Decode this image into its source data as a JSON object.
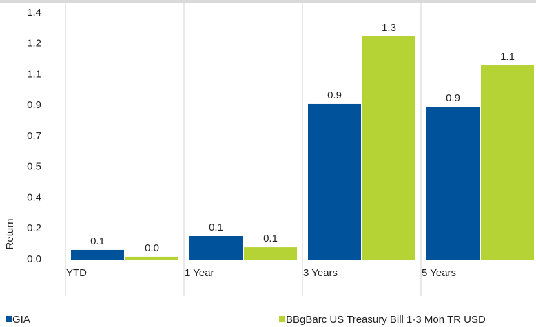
{
  "chart_data": {
    "type": "bar",
    "y_label": "Return",
    "categories": [
      "YTD",
      "1 Year",
      "3 Years",
      "5 Years"
    ],
    "series": [
      {
        "name": "GIA",
        "color": "#00539b",
        "values": [
          0.055,
          0.133,
          0.884,
          0.868
        ],
        "value_labels": [
          "0.1",
          "0.1",
          "0.9",
          "0.9"
        ]
      },
      {
        "name": "BBgBarc US Treasury Bill 1-3 Mon TR USD",
        "color": "#b5d334",
        "values": [
          0.016,
          0.07,
          1.267,
          1.103
        ],
        "value_labels": [
          "0.0",
          "0.1",
          "1.3",
          "1.1"
        ]
      }
    ],
    "ylim": [
      0,
      1.4
    ],
    "yticks": [
      {
        "value": 0,
        "label": "0.0"
      },
      {
        "value": 0.175,
        "label": "0.2"
      },
      {
        "value": 0.35,
        "label": "0.4"
      },
      {
        "value": 0.525,
        "label": "0.5"
      },
      {
        "value": 0.7,
        "label": "0.7"
      },
      {
        "value": 0.875,
        "label": "0.9"
      },
      {
        "value": 1.05,
        "label": "1.1"
      },
      {
        "value": 1.225,
        "label": "1.2"
      },
      {
        "value": 1.4,
        "label": "1.4"
      }
    ],
    "legend": "bottom"
  }
}
